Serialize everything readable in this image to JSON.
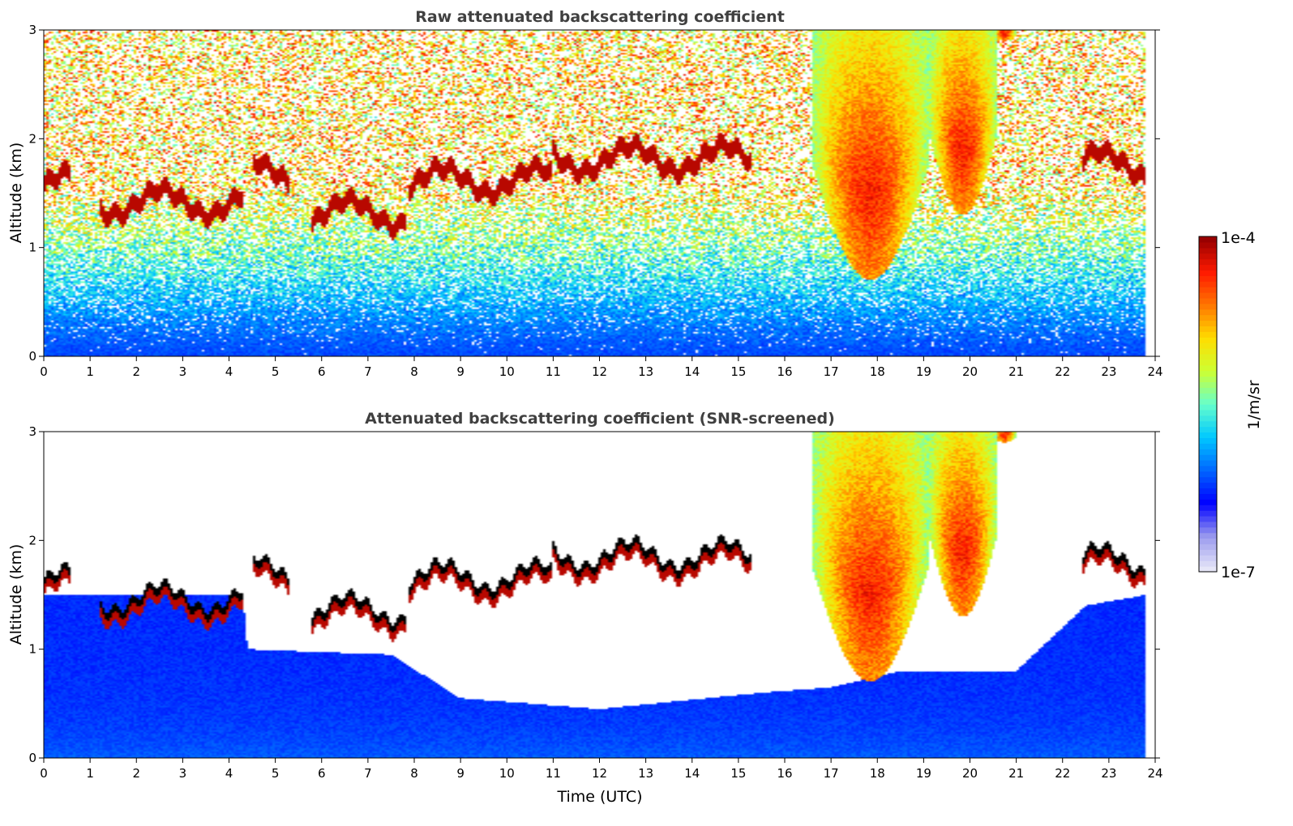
{
  "chart_data": [
    {
      "type": "heatmap",
      "title": "Raw attenuated backscattering coefficient",
      "xlabel": "",
      "ylabel": "Altitude (km)",
      "xlim": [
        0,
        24
      ],
      "ylim": [
        0,
        3
      ],
      "x_ticks": [
        "0",
        "1",
        "2",
        "3",
        "4",
        "5",
        "6",
        "7",
        "8",
        "9",
        "10",
        "11",
        "12",
        "13",
        "14",
        "15",
        "16",
        "17",
        "18",
        "19",
        "20",
        "21",
        "22",
        "23",
        "24"
      ],
      "y_ticks": [
        "0",
        "1",
        "2",
        "3"
      ],
      "screened": false,
      "cloud_base_km": [
        {
          "t0": 0.0,
          "t1": 0.6,
          "z": 1.55
        },
        {
          "t0": 1.2,
          "t1": 4.3,
          "z": 1.4
        },
        {
          "t0": 4.5,
          "t1": 5.3,
          "z": 1.65
        },
        {
          "t0": 5.8,
          "t1": 7.8,
          "z": 1.3
        },
        {
          "t0": 7.9,
          "t1": 11.0,
          "z": 1.6
        },
        {
          "t0": 11.0,
          "t1": 15.3,
          "z": 1.8
        },
        {
          "t0": 22.4,
          "t1": 23.8,
          "z": 1.75
        }
      ],
      "precip_regions": [
        {
          "t0": 16.6,
          "t1": 19.1,
          "top_km": 3.0,
          "bottom_km": 0.7
        },
        {
          "t0": 19.1,
          "t1": 20.6,
          "top_km": 3.0,
          "bottom_km": 1.3
        },
        {
          "t0": 20.5,
          "t1": 21.0,
          "top_km": 3.0,
          "bottom_km": 2.9
        }
      ]
    },
    {
      "type": "heatmap",
      "title": "Attenuated backscattering coefficient (SNR-screened)",
      "xlabel": "Time (UTC)",
      "ylabel": "Altitude (km)",
      "xlim": [
        0,
        24
      ],
      "ylim": [
        0,
        3
      ],
      "x_ticks": [
        "0",
        "1",
        "2",
        "3",
        "4",
        "5",
        "6",
        "7",
        "8",
        "9",
        "10",
        "11",
        "12",
        "13",
        "14",
        "15",
        "16",
        "17",
        "18",
        "19",
        "20",
        "21",
        "22",
        "23",
        "24"
      ],
      "y_ticks": [
        "0",
        "1",
        "2",
        "3"
      ],
      "screened": true,
      "screen_top_km": [
        {
          "t": 0,
          "z": 1.5
        },
        {
          "t": 4.3,
          "z": 1.5
        },
        {
          "t": 4.4,
          "z": 1.0
        },
        {
          "t": 7.5,
          "z": 0.95
        },
        {
          "t": 9.0,
          "z": 0.55
        },
        {
          "t": 12.0,
          "z": 0.45
        },
        {
          "t": 15.5,
          "z": 0.6
        },
        {
          "t": 17.0,
          "z": 0.65
        },
        {
          "t": 18.5,
          "z": 0.8
        },
        {
          "t": 21.0,
          "z": 0.8
        },
        {
          "t": 22.5,
          "z": 1.4
        },
        {
          "t": 23.8,
          "z": 1.5
        }
      ]
    }
  ],
  "colorbar": {
    "label": "1/m/sr",
    "max_label": "1e-4",
    "min_label": "1e-7",
    "scale": "log",
    "colors": [
      "#e6e6f8",
      "#9999ee",
      "#0000ff",
      "#0066ff",
      "#00c8ff",
      "#66ffcc",
      "#ccff33",
      "#ffdd00",
      "#ff7700",
      "#ff1a00",
      "#990000"
    ]
  }
}
